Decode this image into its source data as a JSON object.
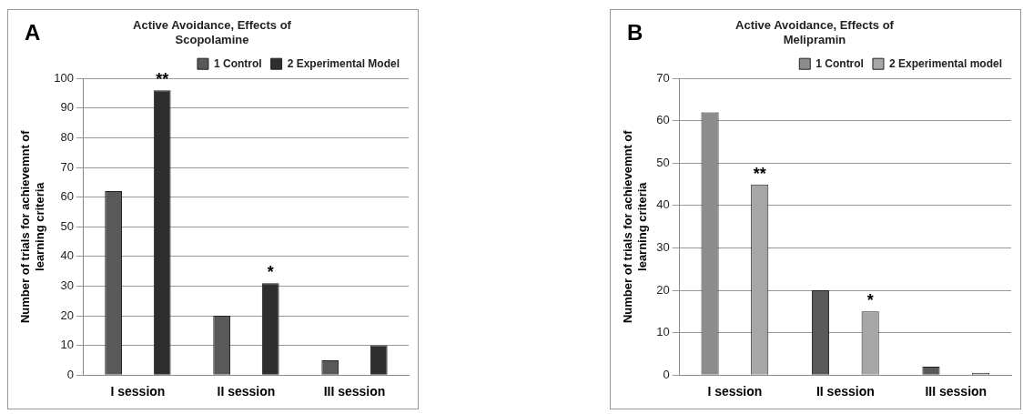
{
  "chart_data": [
    {
      "type": "bar",
      "title": "Active Avoidance, Effects of Scopolamine",
      "ylabel": "Number of trials for achievemnt of learning criteria",
      "categories": [
        "I session",
        "II session",
        "III session"
      ],
      "series": [
        {
          "name": "1 Control",
          "color": "#595959",
          "values": [
            62,
            20,
            5
          ]
        },
        {
          "name": "2 Experimental Model",
          "color": "#2e2e2e",
          "values": [
            96,
            31,
            10
          ]
        }
      ],
      "ylim": [
        0,
        100
      ],
      "yticks": [
        0,
        10,
        20,
        30,
        40,
        50,
        60,
        70,
        80,
        90,
        100
      ],
      "grid": "y",
      "legend": "top right",
      "annotations": [
        "A",
        "**",
        "*"
      ]
    },
    {
      "type": "bar",
      "title": "Active Avoidance, Effects of Melipramin",
      "ylabel": "Number of trials for achievemnt of learning criteria",
      "categories": [
        "I session",
        "II session",
        "III session"
      ],
      "series": [
        {
          "name": "1 Control",
          "color": "#8c8c8c",
          "colors": [
            "#8c8c8c",
            "#595959",
            "#595959"
          ],
          "values": [
            62,
            20,
            2
          ]
        },
        {
          "name": "2 Experimental model",
          "color": "#a6a6a6",
          "values": [
            45,
            15,
            0.5
          ]
        }
      ],
      "ylim": [
        0,
        70
      ],
      "yticks": [
        0,
        10,
        20,
        30,
        40,
        50,
        60,
        70
      ],
      "grid": "y",
      "legend": "top right",
      "annotations": [
        "B",
        "**",
        "*"
      ]
    }
  ]
}
